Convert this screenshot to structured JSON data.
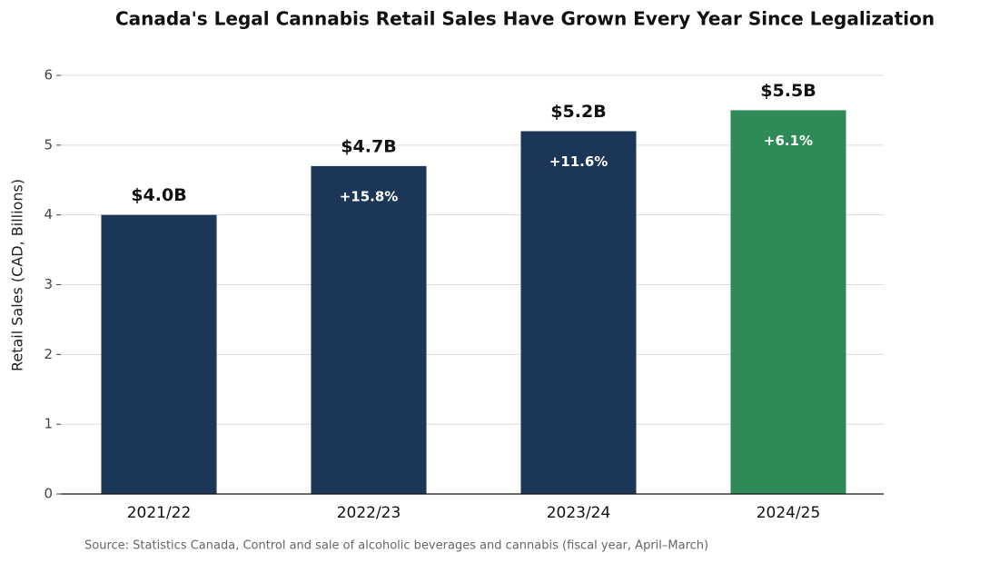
{
  "chart_data": {
    "type": "bar",
    "title": "Canada's Legal Cannabis Retail Sales Have Grown Every Year Since Legalization",
    "ylabel": "Retail Sales (CAD, Billions)",
    "source": "Source: Statistics Canada, Control and sale of alcoholic beverages and cannabis (fiscal year, April–March)",
    "categories": [
      "2021/22",
      "2022/23",
      "2023/24",
      "2024/25"
    ],
    "values": [
      4.0,
      4.7,
      5.2,
      5.5
    ],
    "value_labels": [
      "$4.0B",
      "$4.7B",
      "$5.2B",
      "$5.5B"
    ],
    "growth_labels": [
      null,
      "+15.8%",
      "+11.6%",
      "+6.1%"
    ],
    "colors": [
      "#1c3657",
      "#1c3657",
      "#1c3657",
      "#2e8b57"
    ],
    "ylim": [
      0,
      6
    ],
    "yticks": [
      0,
      1,
      2,
      3,
      4,
      5,
      6
    ],
    "grid": true
  }
}
